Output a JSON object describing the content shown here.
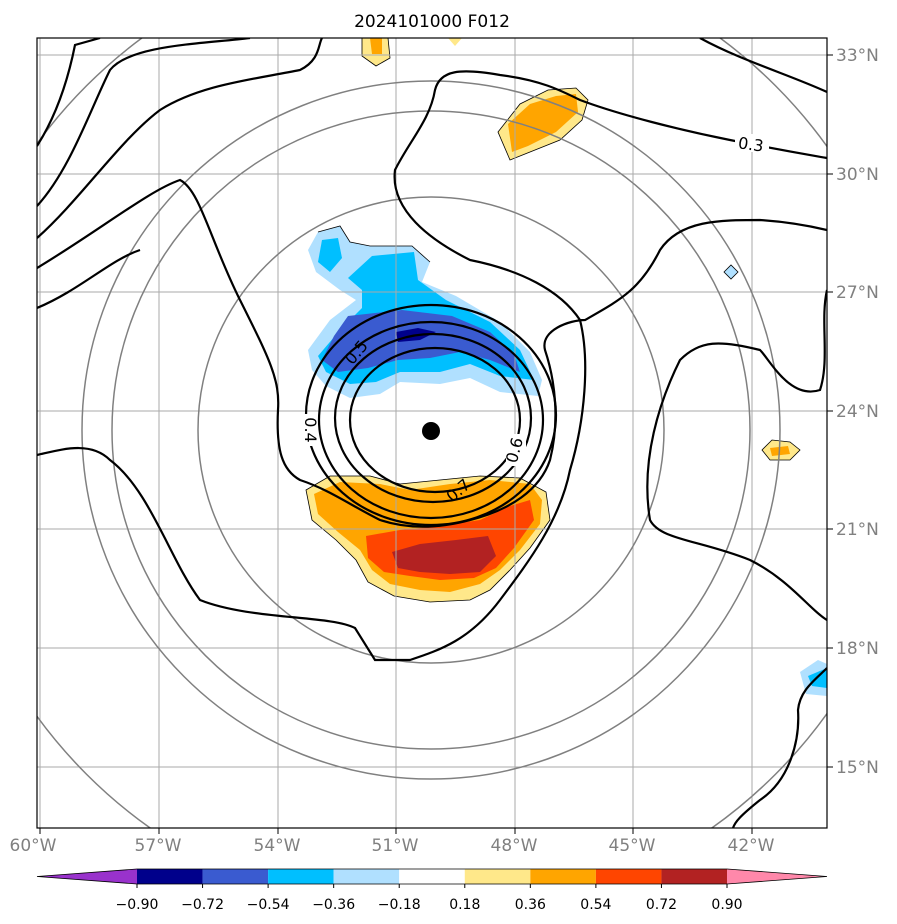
{
  "title": "2024101000 F012",
  "lon_labels": [
    "60°W",
    "57°W",
    "54°W",
    "51°W",
    "48°W",
    "45°W",
    "42°W"
  ],
  "lat_labels": [
    "33°N",
    "30°N",
    "27°N",
    "24°N",
    "21°N",
    "18°N",
    "15°N"
  ],
  "contour_labels": [
    "0.3",
    "0.4",
    "0.5",
    "0.6",
    "0.7"
  ],
  "colorbar": {
    "ticks": [
      "−0.90",
      "−0.72",
      "−0.54",
      "−0.36",
      "−0.18",
      "0.18",
      "0.36",
      "0.54",
      "0.72",
      "0.90"
    ],
    "colors": [
      "#9932CC",
      "#00008B",
      "#3A5BD0",
      "#00BFFF",
      "#B0E0FF",
      "#FFFFFF",
      "#FFE88A",
      "#FFA500",
      "#FF4500",
      "#B22222",
      "#FF88AA"
    ]
  },
  "storm_center": {
    "lon": "50.1°W",
    "lat": "23.5°N"
  }
}
